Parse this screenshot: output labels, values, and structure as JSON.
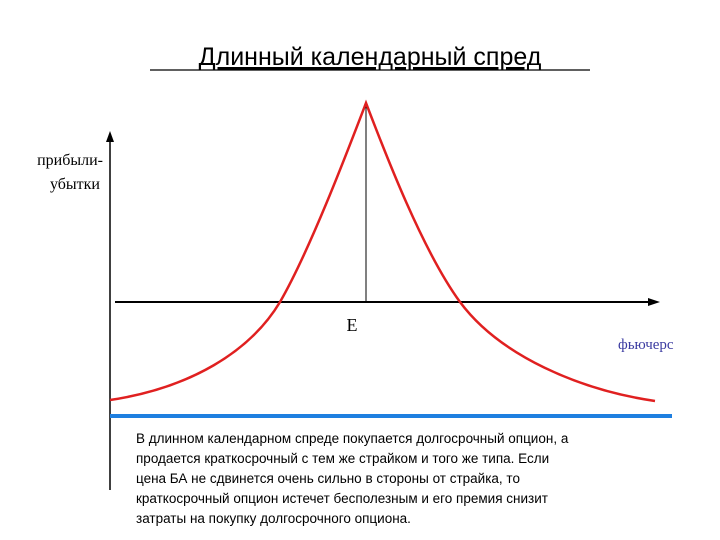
{
  "title": "Длинный календарный спред",
  "y_axis_label": [
    "прибыли-",
    "убытки"
  ],
  "x_axis_label": "фьючерс",
  "point_label": "E",
  "description": [
    "В длинном календарном спреде покупается долгосрочный опцион, а",
    "продается краткосрочный с тем же страйком и того же типа. Если",
    "цена БА не сдвинется очень сильно в стороны от страйка, то",
    "краткосрочный опцион истечет бесполезным и его премия снизит",
    "затраты на покупку долгосрочного опциона."
  ]
}
